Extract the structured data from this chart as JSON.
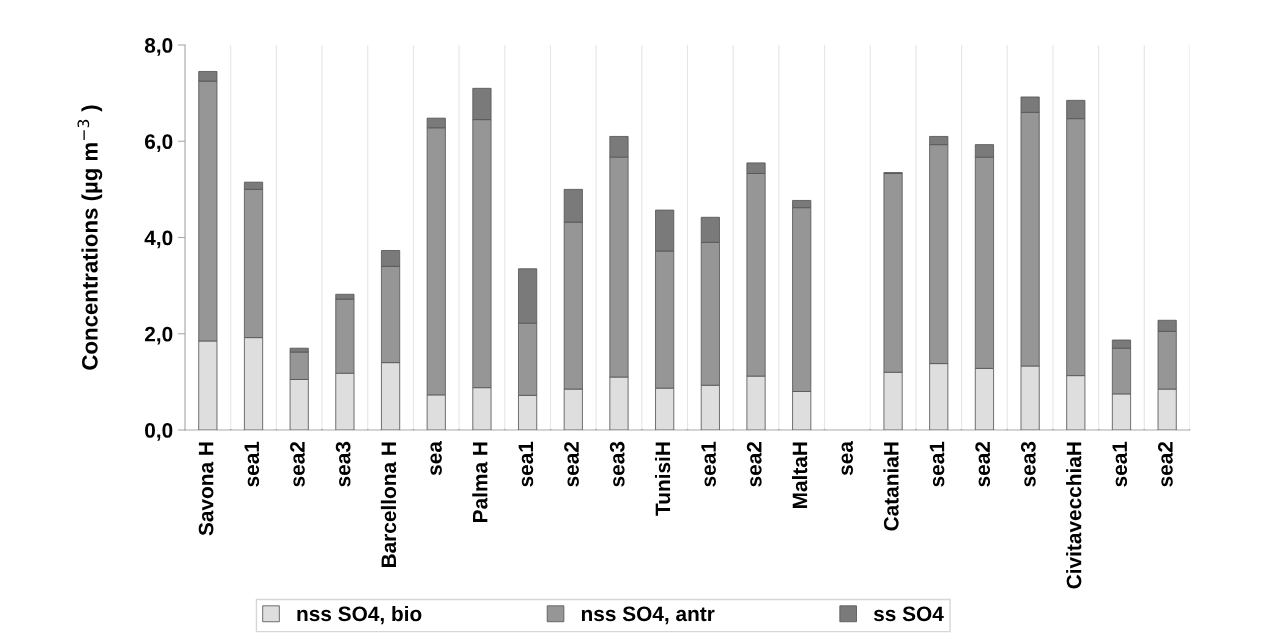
{
  "chart_data": {
    "type": "bar",
    "stacked": true,
    "ylabel": "Concentrations (µg m$^{−3}$ )",
    "categories": [
      "Savona H",
      "sea1",
      "sea2",
      "sea3",
      "Barcellona H",
      "sea",
      "Palma H",
      "sea1",
      "sea2",
      "sea3",
      "TunisiH",
      "sea1",
      "sea2",
      "MaltaH",
      "sea",
      "CataniaH",
      "sea1",
      "sea2",
      "sea3",
      "CivitavecchiaH",
      "sea1",
      "sea2"
    ],
    "series": [
      {
        "name": "nss SO4, bio",
        "color": "#dedede",
        "values": [
          1.85,
          1.92,
          1.05,
          1.18,
          1.4,
          0.73,
          0.88,
          0.72,
          0.85,
          1.1,
          0.87,
          0.93,
          1.12,
          0.8,
          null,
          1.2,
          1.38,
          1.28,
          1.33,
          1.13,
          0.75,
          0.85
        ]
      },
      {
        "name": "nss SO4, antr",
        "color": "#969696",
        "values": [
          5.4,
          3.08,
          0.57,
          1.54,
          2.0,
          5.55,
          5.57,
          1.5,
          3.47,
          4.57,
          2.85,
          2.97,
          4.21,
          3.82,
          null,
          4.13,
          4.55,
          4.39,
          5.27,
          5.34,
          0.95,
          1.2
        ]
      },
      {
        "name": "ss SO4",
        "color": "#7a7a7a",
        "values": [
          0.2,
          0.15,
          0.08,
          0.1,
          0.33,
          0.2,
          0.65,
          1.13,
          0.68,
          0.43,
          0.85,
          0.52,
          0.22,
          0.15,
          null,
          0.02,
          0.17,
          0.26,
          0.32,
          0.38,
          0.17,
          0.23
        ]
      }
    ],
    "ylim": [
      0,
      8
    ],
    "yticks": [
      {
        "value": 0,
        "label": "0,0"
      },
      {
        "value": 2,
        "label": "2,0"
      },
      {
        "value": 4,
        "label": "4,0"
      },
      {
        "value": 6,
        "label": "6,0"
      },
      {
        "value": 8,
        "label": "8,0"
      }
    ],
    "grid": "x",
    "legend": "bottom"
  }
}
